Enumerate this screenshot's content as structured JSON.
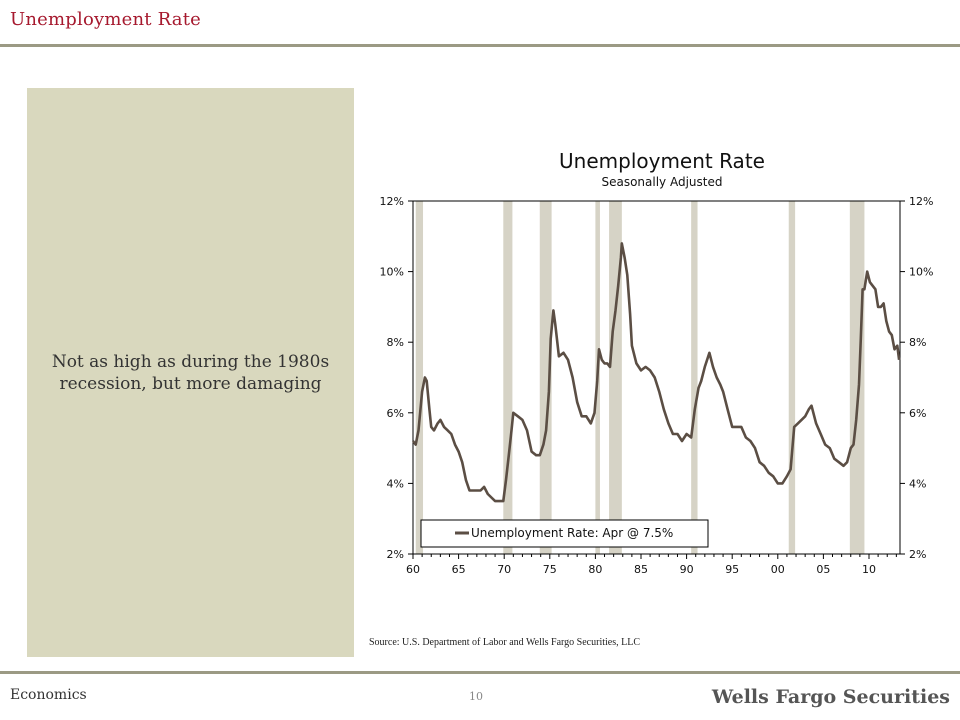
{
  "header": {
    "title": "Unemployment Rate"
  },
  "panel": {
    "text": "Not as high as during the 1980s recession, but more damaging"
  },
  "source": "Source: U.S. Department of Labor and Wells Fargo Securities, LLC",
  "footer": {
    "section": "Economics",
    "page": "10",
    "brand": "Wells Fargo Securities"
  },
  "colors": {
    "title": "#a6192e",
    "line": "#5b4e44",
    "recession": "#d6d3c6",
    "panel": "#d9d8be"
  },
  "chart_data": {
    "type": "line",
    "title": "Unemployment Rate",
    "subtitle": "Seasonally Adjusted",
    "xlabel": "",
    "ylabel": "",
    "xlim": [
      1960,
      2013.4
    ],
    "ylim": [
      2,
      12
    ],
    "y_ticks": [
      2,
      4,
      6,
      8,
      10,
      12
    ],
    "y_tick_labels": [
      "2%",
      "4%",
      "6%",
      "8%",
      "10%",
      "12%"
    ],
    "x_ticks": [
      1960,
      1965,
      1970,
      1975,
      1980,
      1985,
      1990,
      1995,
      2000,
      2005,
      2010
    ],
    "x_tick_labels": [
      "60",
      "65",
      "70",
      "75",
      "80",
      "85",
      "90",
      "95",
      "00",
      "05",
      "10"
    ],
    "grid": false,
    "legend_position": "bottom-center",
    "recessions": [
      [
        1960.3,
        1961.1
      ],
      [
        1969.9,
        1970.9
      ],
      [
        1973.9,
        1975.2
      ],
      [
        1980.0,
        1980.5
      ],
      [
        1981.5,
        1982.9
      ],
      [
        1990.5,
        1991.2
      ],
      [
        2001.2,
        2001.9
      ],
      [
        2007.9,
        2009.5
      ]
    ],
    "series": [
      {
        "name": "Unemployment Rate: Apr @ 7.5%",
        "x": [
          1960.0,
          1960.3,
          1960.6,
          1961.0,
          1961.3,
          1961.5,
          1961.8,
          1962.0,
          1962.3,
          1962.7,
          1963.0,
          1963.4,
          1963.8,
          1964.2,
          1964.6,
          1965.0,
          1965.4,
          1965.8,
          1966.2,
          1966.6,
          1967.0,
          1967.4,
          1967.8,
          1968.2,
          1968.6,
          1969.0,
          1969.5,
          1969.9,
          1970.2,
          1970.5,
          1970.8,
          1971.0,
          1971.5,
          1972.0,
          1972.5,
          1973.0,
          1973.5,
          1973.9,
          1974.3,
          1974.6,
          1974.9,
          1975.1,
          1975.4,
          1975.6,
          1976.0,
          1976.5,
          1977.0,
          1977.5,
          1978.0,
          1978.5,
          1979.0,
          1979.5,
          1979.9,
          1980.2,
          1980.4,
          1980.7,
          1981.0,
          1981.3,
          1981.6,
          1981.9,
          1982.2,
          1982.5,
          1982.8,
          1982.9,
          1983.2,
          1983.5,
          1983.8,
          1984.0,
          1984.5,
          1985.0,
          1985.5,
          1986.0,
          1986.5,
          1987.0,
          1987.5,
          1988.0,
          1988.5,
          1989.0,
          1989.5,
          1990.0,
          1990.5,
          1990.9,
          1991.3,
          1991.6,
          1992.0,
          1992.5,
          1992.9,
          1993.3,
          1993.7,
          1994.0,
          1994.5,
          1995.0,
          1995.5,
          1996.0,
          1996.5,
          1997.0,
          1997.5,
          1998.0,
          1998.5,
          1999.0,
          1999.5,
          2000.0,
          2000.5,
          2001.0,
          2001.4,
          2001.8,
          2002.2,
          2002.6,
          2003.0,
          2003.4,
          2003.7,
          2004.2,
          2004.7,
          2005.2,
          2005.7,
          2006.2,
          2006.7,
          2007.2,
          2007.6,
          2008.0,
          2008.3,
          2008.6,
          2008.9,
          2009.1,
          2009.3,
          2009.5,
          2009.8,
          2010.1,
          2010.4,
          2010.7,
          2011.0,
          2011.3,
          2011.6,
          2011.9,
          2012.2,
          2012.5,
          2012.8,
          2013.1,
          2013.3
        ],
        "y": [
          5.2,
          5.1,
          5.5,
          6.6,
          7.0,
          6.9,
          6.1,
          5.6,
          5.5,
          5.7,
          5.8,
          5.6,
          5.5,
          5.4,
          5.1,
          4.9,
          4.6,
          4.1,
          3.8,
          3.8,
          3.8,
          3.8,
          3.9,
          3.7,
          3.6,
          3.5,
          3.5,
          3.5,
          4.1,
          4.8,
          5.5,
          6.0,
          5.9,
          5.8,
          5.5,
          4.9,
          4.8,
          4.8,
          5.1,
          5.5,
          6.6,
          8.1,
          8.9,
          8.5,
          7.6,
          7.7,
          7.5,
          7.0,
          6.3,
          5.9,
          5.9,
          5.7,
          6.0,
          6.9,
          7.8,
          7.5,
          7.4,
          7.4,
          7.3,
          8.3,
          8.9,
          9.6,
          10.4,
          10.8,
          10.4,
          9.9,
          8.8,
          7.9,
          7.4,
          7.2,
          7.3,
          7.2,
          7.0,
          6.6,
          6.1,
          5.7,
          5.4,
          5.4,
          5.2,
          5.4,
          5.3,
          6.1,
          6.7,
          6.9,
          7.3,
          7.7,
          7.3,
          7.0,
          6.8,
          6.6,
          6.1,
          5.6,
          5.6,
          5.6,
          5.3,
          5.2,
          5.0,
          4.6,
          4.5,
          4.3,
          4.2,
          4.0,
          4.0,
          4.2,
          4.4,
          5.6,
          5.7,
          5.8,
          5.9,
          6.1,
          6.2,
          5.7,
          5.4,
          5.1,
          5.0,
          4.7,
          4.6,
          4.5,
          4.6,
          5.0,
          5.1,
          5.8,
          6.8,
          8.1,
          9.5,
          9.5,
          10.0,
          9.7,
          9.6,
          9.5,
          9.0,
          9.0,
          9.1,
          8.6,
          8.3,
          8.2,
          7.8,
          7.9,
          7.5
        ]
      }
    ]
  }
}
